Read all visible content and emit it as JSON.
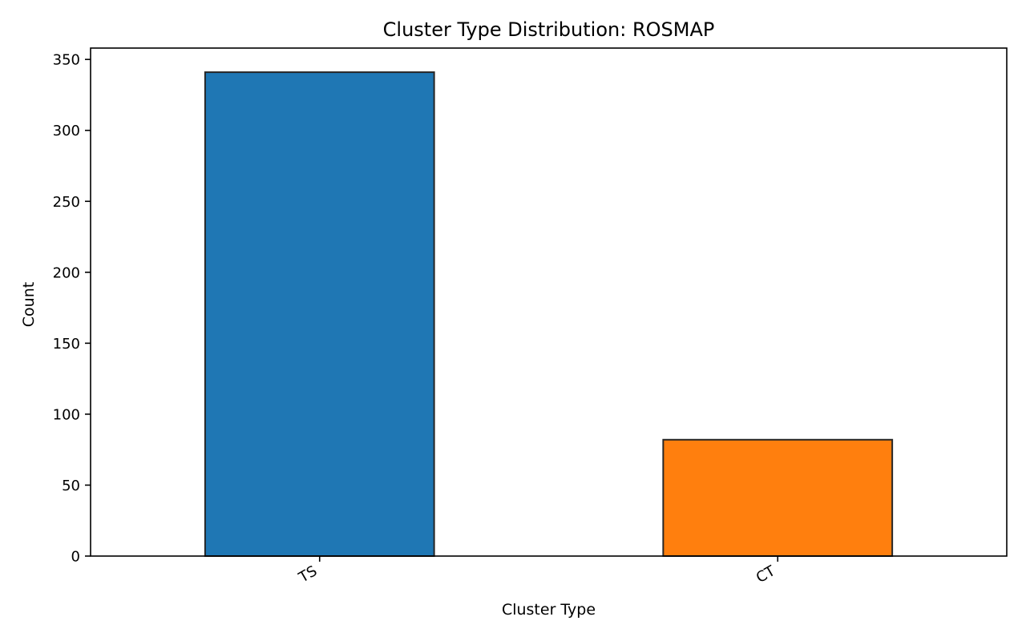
{
  "chart_data": {
    "type": "bar",
    "title": "Cluster Type Distribution: ROSMAP",
    "xlabel": "Cluster Type",
    "ylabel": "Count",
    "categories": [
      "TS",
      "CT"
    ],
    "values": [
      341,
      82
    ],
    "colors": [
      "#1f77b4",
      "#ff7f0e"
    ],
    "edge_color": "#262626",
    "ylim": [
      0,
      358
    ],
    "yticks": [
      0,
      50,
      100,
      150,
      200,
      250,
      300,
      350
    ],
    "grid": false,
    "legend": "none"
  }
}
